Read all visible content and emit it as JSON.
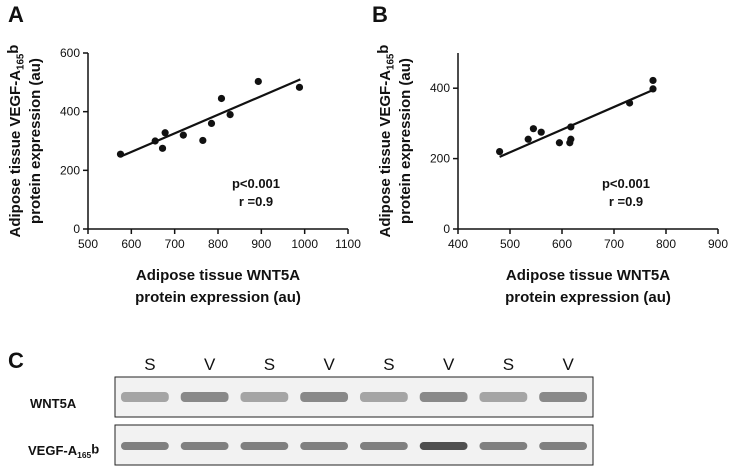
{
  "chart_data": [
    {
      "type": "scatter",
      "panel": "A",
      "xlabel": [
        "Adipose tissue WNT5A",
        "protein expression (au)"
      ],
      "ylabel": [
        [
          "Adipose tissue VEGF-A",
          "165",
          "b"
        ],
        "protein expression (au)"
      ],
      "x": [
        575,
        655,
        672,
        678,
        720,
        765,
        785,
        808,
        828,
        893,
        988
      ],
      "y": [
        255,
        300,
        275,
        328,
        320,
        302,
        360,
        445,
        390,
        503,
        483
      ],
      "trend": {
        "x": [
          580,
          990
        ],
        "y": [
          250,
          510
        ]
      },
      "annotations": [
        "p<0.001",
        "r =0.9"
      ],
      "xlim": [
        500,
        1100
      ],
      "xticks": [
        500,
        600,
        700,
        800,
        900,
        1000,
        1100
      ],
      "ylim": [
        0,
        600
      ],
      "yticks": [
        0,
        200,
        400,
        600
      ],
      "color": "#111111"
    },
    {
      "type": "scatter",
      "panel": "B",
      "xlabel": [
        "Adipose tissue WNT5A",
        "protein expression (au)"
      ],
      "ylabel": [
        [
          "Adipose tissue VEGF-A",
          "165",
          "b"
        ],
        "protein expression (au)"
      ],
      "x": [
        480,
        535,
        545,
        560,
        595,
        615,
        617,
        617,
        730,
        775,
        775
      ],
      "y": [
        220,
        255,
        285,
        275,
        245,
        245,
        255,
        290,
        358,
        398,
        422
      ],
      "trend": {
        "x": [
          480,
          775
        ],
        "y": [
          205,
          395
        ]
      },
      "annotations": [
        "p<0.001",
        "r =0.9"
      ],
      "xlim": [
        400,
        900
      ],
      "xticks": [
        400,
        500,
        600,
        700,
        800,
        900
      ],
      "ylim": [
        0,
        500
      ],
      "yticks": [
        0,
        200,
        400
      ],
      "color": "#111111"
    }
  ],
  "blot": {
    "panel": "C",
    "lanes": [
      "S",
      "V",
      "S",
      "V",
      "S",
      "V",
      "S",
      "V"
    ],
    "rows": [
      "WNT5A",
      [
        "VEGF-A",
        "165",
        "b"
      ]
    ]
  }
}
